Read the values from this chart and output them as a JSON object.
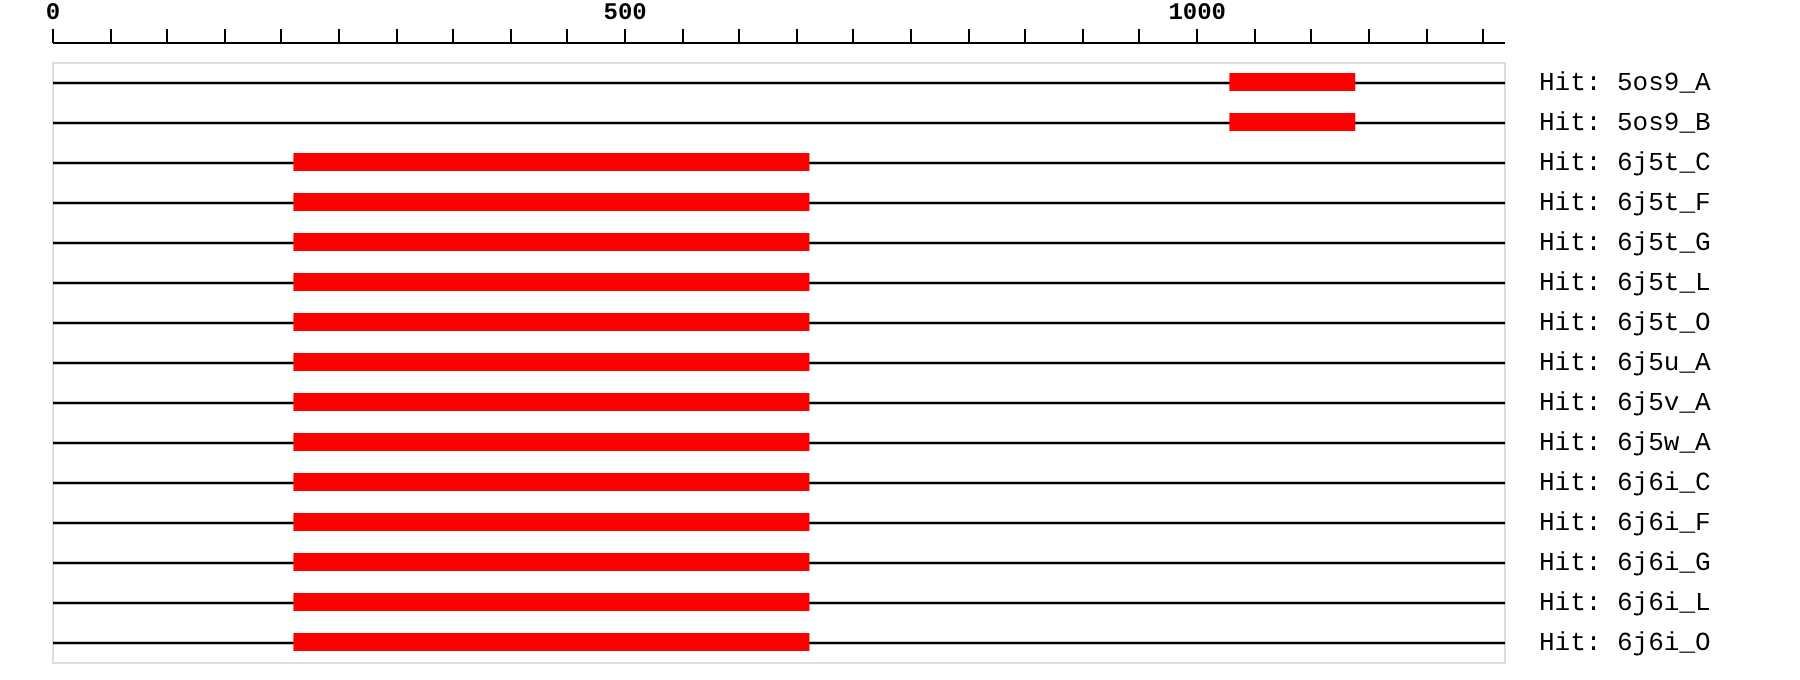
{
  "chart_data": {
    "type": "bar",
    "orientation": "horizontal",
    "categories": [
      "Hit: 5os9_A",
      "Hit: 5os9_B",
      "Hit: 6j5t_C",
      "Hit: 6j5t_F",
      "Hit: 6j5t_G",
      "Hit: 6j5t_L",
      "Hit: 6j5t_O",
      "Hit: 6j5u_A",
      "Hit: 6j5v_A",
      "Hit: 6j5w_A",
      "Hit: 6j6i_C",
      "Hit: 6j6i_F",
      "Hit: 6j6i_G",
      "Hit: 6j6i_L",
      "Hit: 6j6i_O"
    ],
    "base": [
      1029,
      1029,
      211,
      211,
      211,
      211,
      211,
      211,
      211,
      211,
      211,
      211,
      211,
      211,
      211
    ],
    "values": [
      110,
      110,
      451,
      451,
      451,
      451,
      451,
      451,
      451,
      451,
      451,
      451,
      451,
      451,
      451
    ],
    "color": "#ff0000",
    "xlim": [
      0,
      1269
    ],
    "xticks": [
      0,
      {
        "value": 50,
        "label": null
      },
      {
        "value": 100,
        "label": null
      },
      {
        "value": 150,
        "label": null
      },
      {
        "value": 200,
        "label": null
      },
      {
        "value": 250,
        "label": null
      },
      {
        "value": 300,
        "label": null
      },
      {
        "value": 350,
        "label": null
      },
      {
        "value": 400,
        "label": null
      },
      {
        "value": 450,
        "label": null
      },
      500,
      {
        "value": 550,
        "label": null
      },
      {
        "value": 600,
        "label": null
      },
      {
        "value": 650,
        "label": null
      },
      {
        "value": 700,
        "label": null
      },
      {
        "value": 750,
        "label": null
      },
      {
        "value": 800,
        "label": null
      },
      {
        "value": 850,
        "label": null
      },
      {
        "value": 900,
        "label": null
      },
      {
        "value": 950,
        "label": null
      },
      1000,
      {
        "value": 1050,
        "label": null
      },
      {
        "value": 1100,
        "label": null
      },
      {
        "value": 1150,
        "label": null
      },
      {
        "value": 1200,
        "label": null
      },
      {
        "value": 1250,
        "label": null
      }
    ],
    "grid": "y"
  }
}
